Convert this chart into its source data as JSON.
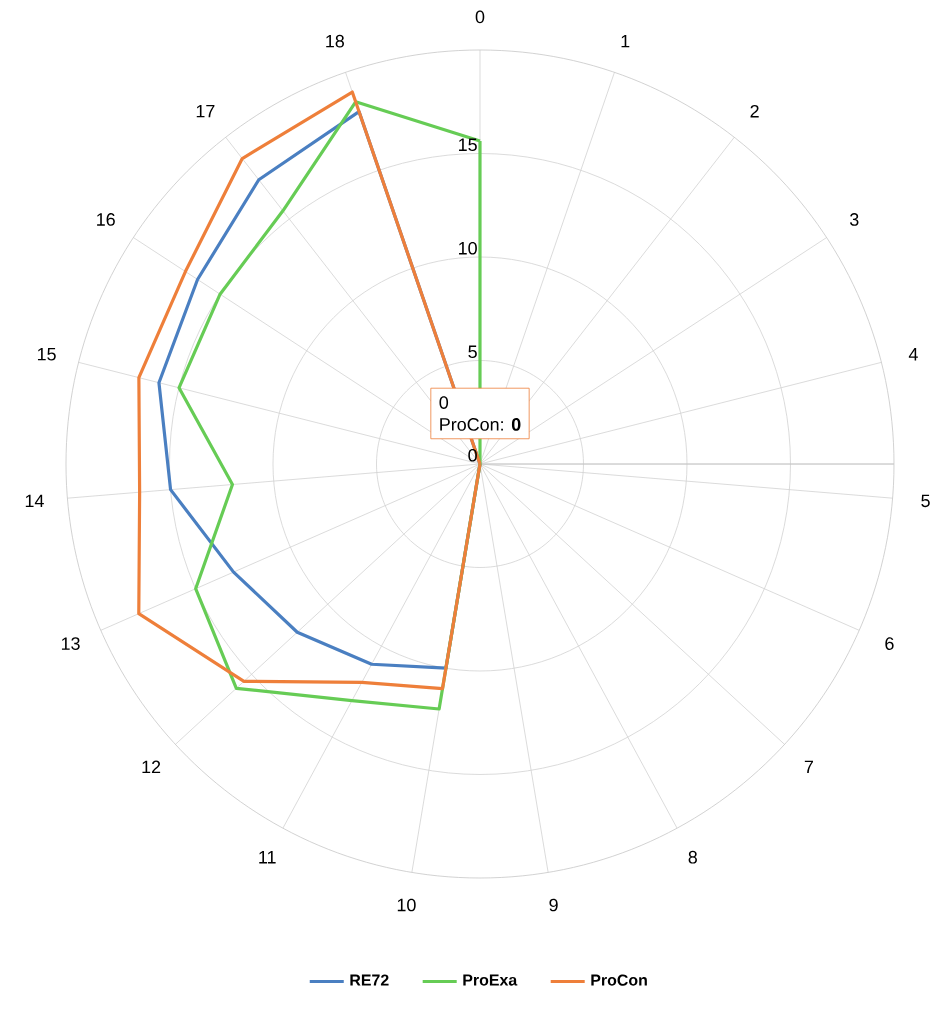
{
  "chart_data": {
    "type": "radar",
    "categories": [
      "0",
      "1",
      "2",
      "3",
      "4",
      "5",
      "6",
      "7",
      "8",
      "9",
      "10",
      "11",
      "12",
      "13",
      "14",
      "15",
      "16",
      "17",
      "18"
    ],
    "ylim": [
      0,
      20
    ],
    "yticks": [
      0,
      5,
      10,
      15
    ],
    "grid": true,
    "legend": "bottom",
    "marker": "none",
    "line_style": "solid",
    "series": [
      {
        "name": "RE72",
        "color": "#4a7fc1",
        "values": [
          0,
          0,
          0,
          0,
          0,
          0,
          0,
          0,
          0,
          0,
          10,
          11,
          12,
          13,
          15,
          16,
          16.3,
          17.4,
          18
        ]
      },
      {
        "name": "ProExa",
        "color": "#66cc55",
        "values": [
          15.6,
          0,
          0,
          0,
          0,
          0,
          0,
          0,
          0,
          0,
          12,
          13,
          16,
          15,
          12,
          15,
          15,
          15.5,
          18.5
        ]
      },
      {
        "name": "ProCon",
        "color": "#ee7f3a",
        "values": [
          0,
          0,
          0,
          0,
          0,
          0,
          0,
          0,
          0,
          0,
          11,
          12,
          15.5,
          18,
          16.5,
          17,
          17,
          18.7,
          19
        ]
      }
    ],
    "annotations": [
      "0",
      "ProCon: **0**"
    ]
  }
}
